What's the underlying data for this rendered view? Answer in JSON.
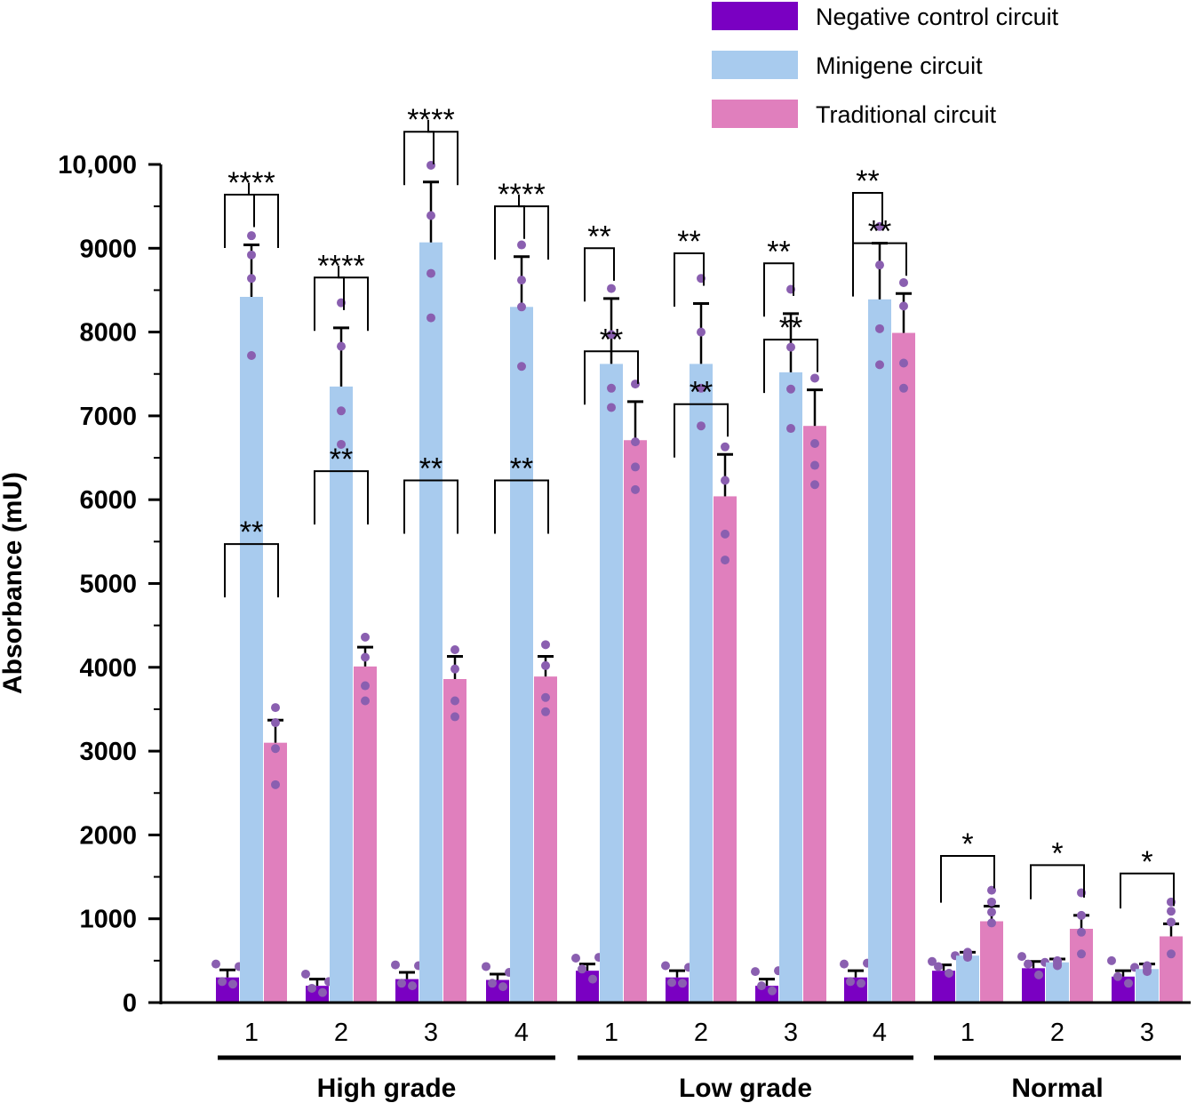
{
  "chart_data": {
    "type": "bar",
    "title": "",
    "ylabel": "Absorbance (mU)",
    "ylim": [
      0,
      10000
    ],
    "yticks": [
      0,
      1000,
      2000,
      3000,
      4000,
      5000,
      6000,
      7000,
      8000,
      9000,
      10000
    ],
    "ytick_labels": [
      "0",
      "1000",
      "2000",
      "3000",
      "4000",
      "5000",
      "6000",
      "7000",
      "8000",
      "9000",
      "10,000"
    ],
    "grid": false,
    "legend_position": "top-right",
    "series": [
      {
        "name": "Negative control circuit",
        "color": "#7a00c2",
        "values": [
          300,
          200,
          280,
          270,
          380,
          300,
          200,
          300,
          380,
          410,
          310
        ],
        "errors": [
          90,
          80,
          80,
          70,
          80,
          80,
          80,
          80,
          70,
          80,
          70
        ]
      },
      {
        "name": "Minigene circuit",
        "color": "#a8cbee",
        "values": [
          8420,
          7350,
          9070,
          8300,
          7620,
          7620,
          7520,
          8390,
          560,
          480,
          400
        ],
        "errors": [
          620,
          700,
          720,
          600,
          780,
          720,
          700,
          670,
          40,
          40,
          60
        ]
      },
      {
        "name": "Traditional circuit",
        "color": "#e07fbd",
        "values": [
          3100,
          4010,
          3860,
          3890,
          6710,
          6040,
          6880,
          7990,
          970,
          880,
          790
        ],
        "errors": [
          270,
          230,
          270,
          240,
          460,
          500,
          430,
          470,
          180,
          160,
          150
        ]
      }
    ],
    "points": [
      [
        [
          [
            460,
            430,
            250,
            220
          ],
          [
            9150,
            8920,
            8640,
            7720
          ],
          [
            3520,
            3340,
            3030,
            2600
          ]
        ],
        [
          [
            340,
            250,
            170,
            120
          ],
          [
            8350,
            7830,
            7060,
            6660
          ],
          [
            4360,
            4120,
            3780,
            3600
          ]
        ],
        [
          [
            450,
            440,
            230,
            200
          ],
          [
            9990,
            9390,
            8700,
            8170
          ],
          [
            4210,
            3980,
            3600,
            3410
          ]
        ],
        [
          [
            430,
            360,
            230,
            190
          ],
          [
            9040,
            8620,
            8300,
            7590
          ],
          [
            4270,
            4020,
            3640,
            3470
          ]
        ],
        [
          [
            530,
            540,
            400,
            280
          ],
          [
            8520,
            7970,
            7330,
            7100
          ],
          [
            7380,
            6690,
            6390,
            6120
          ]
        ],
        [
          [
            440,
            420,
            240,
            230
          ],
          [
            8640,
            8000,
            7330,
            6880
          ],
          [
            6630,
            6230,
            5590,
            5280
          ]
        ],
        [
          [
            370,
            380,
            200,
            140
          ],
          [
            8510,
            7820,
            7320,
            6850
          ],
          [
            7450,
            6670,
            6410,
            6180
          ]
        ],
        [
          [
            460,
            470,
            250,
            230
          ],
          [
            9260,
            8800,
            8040,
            7610
          ],
          [
            8590,
            8310,
            7630,
            7330
          ]
        ],
        [
          [
            490,
            560,
            430,
            350
          ],
          [
            570,
            540,
            560,
            600
          ],
          [
            1340,
            1200,
            1080,
            950
          ]
        ],
        [
          [
            550,
            480,
            460,
            330
          ],
          [
            500,
            460,
            440,
            490
          ],
          [
            1310,
            1040,
            840,
            580
          ]
        ],
        [
          [
            500,
            420,
            310,
            230
          ],
          [
            430,
            370,
            440,
            390
          ],
          [
            1200,
            1090,
            960,
            580
          ]
        ]
      ]
    ],
    "groups": [
      {
        "label": "High grade",
        "categories": [
          "1",
          "2",
          "3",
          "4"
        ]
      },
      {
        "label": "Low grade",
        "categories": [
          "1",
          "2",
          "3",
          "4"
        ]
      },
      {
        "label": "Normal",
        "categories": [
          "1",
          "2",
          "3"
        ]
      }
    ],
    "significance": [
      {
        "group": 0,
        "cat": 0,
        "from": 0,
        "to": 1,
        "label": "**"
      },
      {
        "group": 0,
        "cat": 0,
        "from": 1,
        "to": 2,
        "label": "**"
      },
      {
        "group": 0,
        "cat": 0,
        "from": 0,
        "to": 2,
        "label": "**"
      },
      {
        "group": 0,
        "cat": 1,
        "from": 0,
        "to": 1,
        "label": "**"
      },
      {
        "group": 0,
        "cat": 1,
        "from": 1,
        "to": 2,
        "label": "**"
      },
      {
        "group": 0,
        "cat": 1,
        "from": 0,
        "to": 2,
        "label": "**"
      },
      {
        "group": 0,
        "cat": 2,
        "from": 0,
        "to": 1,
        "label": "**"
      },
      {
        "group": 0,
        "cat": 2,
        "from": 1,
        "to": 2,
        "label": "**"
      },
      {
        "group": 0,
        "cat": 2,
        "from": 0,
        "to": 2,
        "label": "**"
      },
      {
        "group": 0,
        "cat": 3,
        "from": 0,
        "to": 1,
        "label": "**"
      },
      {
        "group": 0,
        "cat": 3,
        "from": 1,
        "to": 2,
        "label": "**"
      },
      {
        "group": 0,
        "cat": 3,
        "from": 0,
        "to": 2,
        "label": "**"
      },
      {
        "group": 1,
        "cat": 0,
        "from": 0,
        "to": 1,
        "label": "**"
      },
      {
        "group": 1,
        "cat": 0,
        "from": 0,
        "to": 2,
        "label": "**"
      },
      {
        "group": 1,
        "cat": 1,
        "from": 0,
        "to": 1,
        "label": "**"
      },
      {
        "group": 1,
        "cat": 1,
        "from": 0,
        "to": 2,
        "label": "**"
      },
      {
        "group": 1,
        "cat": 2,
        "from": 0,
        "to": 1,
        "label": "**"
      },
      {
        "group": 1,
        "cat": 2,
        "from": 0,
        "to": 2,
        "label": "**"
      },
      {
        "group": 1,
        "cat": 3,
        "from": 0,
        "to": 1,
        "label": "**"
      },
      {
        "group": 1,
        "cat": 3,
        "from": 0,
        "to": 2,
        "label": "**"
      },
      {
        "group": 2,
        "cat": 0,
        "from": 0,
        "to": 2,
        "label": "*"
      },
      {
        "group": 2,
        "cat": 1,
        "from": 0,
        "to": 2,
        "label": "*"
      },
      {
        "group": 2,
        "cat": 2,
        "from": 0,
        "to": 2,
        "label": "*"
      }
    ]
  }
}
